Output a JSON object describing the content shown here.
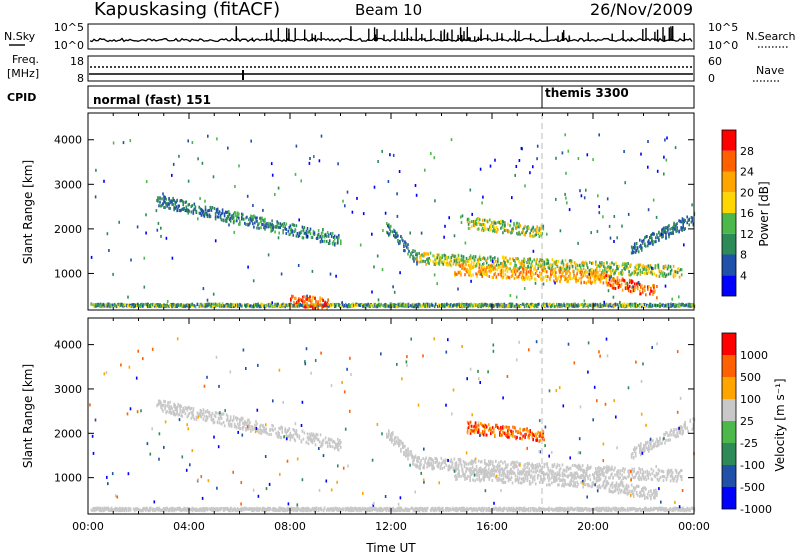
{
  "header": {
    "station": "Kapuskasing (fitACF)",
    "beam": "Beam 10",
    "date": "26/Nov/2009"
  },
  "strip_labels": {
    "nsky": "N.Sky",
    "freq": "Freq.",
    "freq_unit": "[MHz]",
    "cpid": "CPID",
    "nsearch": "N.Search",
    "nave": "Nave",
    "nsky_top": "10^5",
    "nsky_bottom": "10^0",
    "nsearch_top": "10^5",
    "nsearch_bottom": "10^0",
    "freq_top": "18",
    "freq_bottom": "8",
    "nave_top": "60",
    "nave_bottom": "0"
  },
  "cpid_modes": [
    {
      "label": "normal (fast) 151",
      "start_hour": 0
    },
    {
      "label": "themis 3300",
      "start_hour": 18
    }
  ],
  "chart_data": [
    {
      "type": "heatmap",
      "name": "power",
      "ylabel": "Slant Range [km]",
      "xlabel": "",
      "xlim": [
        0,
        24
      ],
      "ylim": [
        180,
        4600
      ],
      "yticks": [
        1000,
        2000,
        3000,
        4000
      ],
      "colorbar": {
        "title": "Power [dB]",
        "ticks": [
          "4",
          "8",
          "12",
          "16",
          "20",
          "24",
          "28"
        ],
        "colors": [
          "#0000ff",
          "#2050a8",
          "#2e8b57",
          "#4cb84c",
          "#ffd700",
          "#ffa500",
          "#ff6000",
          "#ff0000"
        ]
      },
      "regions": [
        {
          "t": [
            2.7,
            5.5
          ],
          "r": [
            2600,
            2250
          ],
          "level": [
            1,
            2
          ]
        },
        {
          "t": [
            5.5,
            10.0
          ],
          "r": [
            2250,
            1700
          ],
          "level": [
            1,
            3
          ]
        },
        {
          "t": [
            11.8,
            13.0
          ],
          "r": [
            2000,
            1300
          ],
          "level": [
            1,
            3
          ]
        },
        {
          "t": [
            13.0,
            23.5
          ],
          "r": [
            1300,
            1000
          ],
          "level": [
            2,
            5
          ]
        },
        {
          "t": [
            14.5,
            20.5
          ],
          "r": [
            1050,
            850
          ],
          "level": [
            4,
            6
          ]
        },
        {
          "t": [
            20.5,
            22.5
          ],
          "r": [
            800,
            550
          ],
          "level": [
            5,
            7
          ]
        },
        {
          "t": [
            15.0,
            18.0
          ],
          "r": [
            2100,
            1900
          ],
          "level": [
            2,
            5
          ]
        },
        {
          "t": [
            21.5,
            24.0
          ],
          "r": [
            1500,
            2200
          ],
          "level": [
            1,
            2
          ]
        },
        {
          "t": [
            0.1,
            24.0
          ],
          "r": [
            250,
            250
          ],
          "level": [
            1,
            4
          ]
        },
        {
          "t": [
            8.0,
            9.5
          ],
          "r": [
            380,
            260
          ],
          "level": [
            5,
            7
          ]
        }
      ]
    },
    {
      "type": "heatmap",
      "name": "velocity",
      "ylabel": "Slant Range [km]",
      "xlabel": "Time UT",
      "xlim": [
        0,
        24
      ],
      "ylim": [
        180,
        4600
      ],
      "xticks": [
        "00:00",
        "04:00",
        "08:00",
        "12:00",
        "16:00",
        "20:00",
        "00:00"
      ],
      "yticks": [
        1000,
        2000,
        3000,
        4000
      ],
      "colorbar": {
        "title": "Velocity [m s⁻¹]",
        "ticks": [
          "1000",
          "500",
          "100",
          "25",
          "-25",
          "-100",
          "-500",
          "-1000"
        ],
        "colors": [
          "#0000ff",
          "#2050a8",
          "#2e8b57",
          "#4cb84c",
          "#c8c8c8",
          "#ffa500",
          "#ff6000",
          "#ff0000"
        ]
      },
      "regions": [
        {
          "t": [
            2.7,
            5.5
          ],
          "r": [
            2600,
            2250
          ],
          "level": [
            4,
            4
          ]
        },
        {
          "t": [
            5.5,
            10.0
          ],
          "r": [
            2250,
            1700
          ],
          "level": [
            4,
            4
          ]
        },
        {
          "t": [
            11.8,
            13.0
          ],
          "r": [
            2000,
            1300
          ],
          "level": [
            4,
            4
          ]
        },
        {
          "t": [
            13.0,
            23.5
          ],
          "r": [
            1300,
            1000
          ],
          "level": [
            4,
            4
          ]
        },
        {
          "t": [
            14.5,
            20.5
          ],
          "r": [
            1050,
            850
          ],
          "level": [
            4,
            4
          ]
        },
        {
          "t": [
            20.5,
            22.5
          ],
          "r": [
            800,
            550
          ],
          "level": [
            4,
            4
          ]
        },
        {
          "t": [
            15.0,
            18.0
          ],
          "r": [
            2100,
            1900
          ],
          "level": [
            5,
            7
          ]
        },
        {
          "t": [
            21.5,
            24.0
          ],
          "r": [
            1500,
            2200
          ],
          "level": [
            4,
            4
          ]
        },
        {
          "t": [
            0.1,
            24.0
          ],
          "r": [
            250,
            250
          ],
          "level": [
            4,
            4
          ]
        }
      ]
    }
  ]
}
